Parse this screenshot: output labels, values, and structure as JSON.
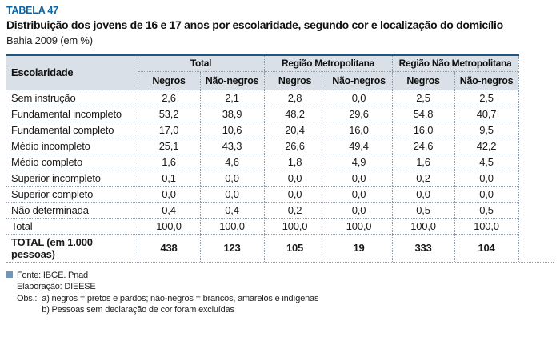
{
  "colors": {
    "title_blue": "#1164a0",
    "rule_blue": "#1e5880",
    "header_bg": "#d9e0e8",
    "dot": "#8f9aa5",
    "sq": "#7296ba"
  },
  "header": {
    "tag": "TABELA 47",
    "title": "Distribuição dos jovens de 16 e 17 anos por escolaridade, segundo cor e localização do domicílio",
    "subtitle": "Bahia 2009 (em %)"
  },
  "table": {
    "col_label": "Escolaridade",
    "groups": [
      {
        "label": "Total"
      },
      {
        "label": "Região Metropolitana"
      },
      {
        "label": "Região Não Metropolitana"
      }
    ],
    "subheaders": [
      "Negros",
      "Não-negros",
      "Negros",
      "Não-negros",
      "Negros",
      "Não-negros"
    ],
    "rows": [
      {
        "label": "Sem instrução",
        "values": [
          "2,6",
          "2,1",
          "2,8",
          "0,0",
          "2,5",
          "2,5"
        ],
        "bold": false
      },
      {
        "label": "Fundamental incompleto",
        "values": [
          "53,2",
          "38,9",
          "48,2",
          "29,6",
          "54,8",
          "40,7"
        ],
        "bold": false
      },
      {
        "label": "Fundamental completo",
        "values": [
          "17,0",
          "10,6",
          "20,4",
          "16,0",
          "16,0",
          "9,5"
        ],
        "bold": false
      },
      {
        "label": "Médio incompleto",
        "values": [
          "25,1",
          "43,3",
          "26,6",
          "49,4",
          "24,6",
          "42,2"
        ],
        "bold": false
      },
      {
        "label": "Médio completo",
        "values": [
          "1,6",
          "4,6",
          "1,8",
          "4,9",
          "1,6",
          "4,5"
        ],
        "bold": false
      },
      {
        "label": "Superior incompleto",
        "values": [
          "0,1",
          "0,0",
          "0,0",
          "0,0",
          "0,2",
          "0,0"
        ],
        "bold": false
      },
      {
        "label": "Superior completo",
        "values": [
          "0,0",
          "0,0",
          "0,0",
          "0,0",
          "0,0",
          "0,0"
        ],
        "bold": false
      },
      {
        "label": "Não determinada",
        "values": [
          "0,4",
          "0,4",
          "0,2",
          "0,0",
          "0,5",
          "0,5"
        ],
        "bold": false
      },
      {
        "label": "Total",
        "values": [
          "100,0",
          "100,0",
          "100,0",
          "100,0",
          "100,0",
          "100,0"
        ],
        "bold": false
      },
      {
        "label": "TOTAL (em 1.000 pessoas)",
        "values": [
          "438",
          "123",
          "105",
          "19",
          "333",
          "104"
        ],
        "bold": true
      }
    ]
  },
  "footer": {
    "fonte": "Fonte: IBGE. Pnad",
    "elaboracao": "Elaboração: DIEESE",
    "obs_label": "Obs.:",
    "obs_items": [
      "a) negros = pretos e pardos; não-negros = brancos, amarelos e indígenas",
      "b) Pessoas sem declaração de cor foram excluídas"
    ]
  },
  "chart_data": {
    "type": "table",
    "title": "Distribuição dos jovens de 16 e 17 anos por escolaridade, segundo cor e localização do domicílio",
    "subtitle": "Bahia 2009 (em %)",
    "row_label": "Escolaridade",
    "categories": [
      "Sem instrução",
      "Fundamental incompleto",
      "Fundamental completo",
      "Médio incompleto",
      "Médio completo",
      "Superior incompleto",
      "Superior completo",
      "Não determinada",
      "Total",
      "TOTAL (em 1.000 pessoas)"
    ],
    "series": [
      {
        "name": "Total — Negros",
        "values": [
          2.6,
          53.2,
          17.0,
          25.1,
          1.6,
          0.1,
          0.0,
          0.4,
          100.0,
          438
        ]
      },
      {
        "name": "Total — Não-negros",
        "values": [
          2.1,
          38.9,
          10.6,
          43.3,
          4.6,
          0.0,
          0.0,
          0.4,
          100.0,
          123
        ]
      },
      {
        "name": "Região Metropolitana — Negros",
        "values": [
          2.8,
          48.2,
          20.4,
          26.6,
          1.8,
          0.0,
          0.0,
          0.2,
          100.0,
          105
        ]
      },
      {
        "name": "Região Metropolitana — Não-negros",
        "values": [
          0.0,
          29.6,
          16.0,
          49.4,
          4.9,
          0.0,
          0.0,
          0.0,
          100.0,
          19
        ]
      },
      {
        "name": "Região Não Metropolitana — Negros",
        "values": [
          2.5,
          54.8,
          16.0,
          24.6,
          1.6,
          0.2,
          0.0,
          0.5,
          100.0,
          333
        ]
      },
      {
        "name": "Região Não Metropolitana — Não-negros",
        "values": [
          2.5,
          40.7,
          9.5,
          42.2,
          4.5,
          0.0,
          0.0,
          0.5,
          100.0,
          104
        ]
      }
    ],
    "source": "Fonte: IBGE. Pnad — Elaboração: DIEESE"
  }
}
